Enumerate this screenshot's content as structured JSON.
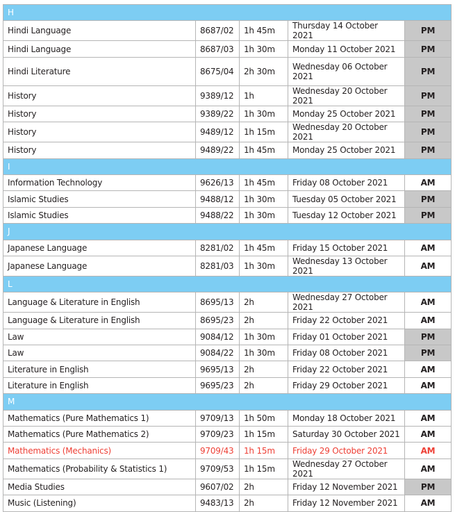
{
  "colors": {
    "section_header": "#7dcdf3",
    "pm_cell": "#c8c8c8",
    "highlight_text": "#ee4036"
  },
  "sections": [
    {
      "letter": "H",
      "rows": [
        {
          "subject": "Hindi Language",
          "code": "8687/02",
          "duration": "1h 45m",
          "date": "Thursday 14 October 2021",
          "session": "PM"
        },
        {
          "subject": "Hindi Language",
          "code": "8687/03",
          "duration": "1h 30m",
          "date": "Monday 11 October 2021",
          "session": "PM"
        },
        {
          "subject": "Hindi Literature",
          "code": "8675/04",
          "duration": "2h 30m",
          "date": "Wednesday 06 October 2021",
          "session": "PM",
          "tall": true
        },
        {
          "subject": "History",
          "code": "9389/12",
          "duration": "1h",
          "date": "Wednesday 20 October 2021",
          "session": "PM"
        },
        {
          "subject": "History",
          "code": "9389/22",
          "duration": "1h 30m",
          "date": "Monday 25 October 2021",
          "session": "PM"
        },
        {
          "subject": "History",
          "code": "9489/12",
          "duration": "1h 15m",
          "date": "Wednesday 20 October 2021",
          "session": "PM"
        },
        {
          "subject": "History",
          "code": "9489/22",
          "duration": "1h 45m",
          "date": "Monday 25 October 2021",
          "session": "PM"
        }
      ]
    },
    {
      "letter": "I",
      "rows": [
        {
          "subject": "Information Technology",
          "code": "9626/13",
          "duration": "1h 45m",
          "date": "Friday 08 October 2021",
          "session": "AM"
        },
        {
          "subject": "Islamic Studies",
          "code": "9488/12",
          "duration": "1h 30m",
          "date": "Tuesday 05 October 2021",
          "session": "PM"
        },
        {
          "subject": "Islamic Studies",
          "code": "9488/22",
          "duration": "1h 30m",
          "date": "Tuesday 12 October 2021",
          "session": "PM"
        }
      ]
    },
    {
      "letter": "J",
      "rows": [
        {
          "subject": "Japanese Language",
          "code": "8281/02",
          "duration": "1h 45m",
          "date": "Friday 15 October 2021",
          "session": "AM"
        },
        {
          "subject": "Japanese Language",
          "code": "8281/03",
          "duration": "1h 30m",
          "date": "Wednesday 13 October 2021",
          "session": "AM"
        }
      ]
    },
    {
      "letter": "L",
      "rows": [
        {
          "subject": "Language & Literature in English",
          "code": "8695/13",
          "duration": "2h",
          "date": "Wednesday 27 October 2021",
          "session": "AM"
        },
        {
          "subject": "Language & Literature in English",
          "code": "8695/23",
          "duration": "2h",
          "date": "Friday 22 October 2021",
          "session": "AM"
        },
        {
          "subject": "Law",
          "code": "9084/12",
          "duration": "1h 30m",
          "date": "Friday 01 October 2021",
          "session": "PM"
        },
        {
          "subject": "Law",
          "code": "9084/22",
          "duration": "1h 30m",
          "date": "Friday 08 October 2021",
          "session": "PM"
        },
        {
          "subject": "Literature in English",
          "code": "9695/13",
          "duration": "2h",
          "date": "Friday 22 October 2021",
          "session": "AM"
        },
        {
          "subject": "Literature in English",
          "code": "9695/23",
          "duration": "2h",
          "date": "Friday 29 October 2021",
          "session": "AM"
        }
      ]
    },
    {
      "letter": "M",
      "rows": [
        {
          "subject": "Mathematics (Pure Mathematics 1)",
          "code": "9709/13",
          "duration": "1h 50m",
          "date": "Monday 18 October 2021",
          "session": "AM"
        },
        {
          "subject": "Mathematics (Pure Mathematics 2)",
          "code": "9709/23",
          "duration": "1h 15m",
          "date": "Saturday 30 October 2021",
          "session": "AM"
        },
        {
          "subject": "Mathematics (Mechanics)",
          "code": "9709/43",
          "duration": "1h 15m",
          "date": "Friday 29 October 2021",
          "session": "AM",
          "highlight": true
        },
        {
          "subject": "Mathematics (Probability & Statistics 1)",
          "code": "9709/53",
          "duration": "1h 15m",
          "date": "Wednesday 27 October 2021",
          "session": "AM"
        },
        {
          "subject": "Media Studies",
          "code": "9607/02",
          "duration": "2h",
          "date": "Friday 12 November 2021",
          "session": "PM"
        },
        {
          "subject": "Music (Listening)",
          "code": "9483/13",
          "duration": "2h",
          "date": "Friday 12 November 2021",
          "session": "AM"
        }
      ]
    }
  ]
}
